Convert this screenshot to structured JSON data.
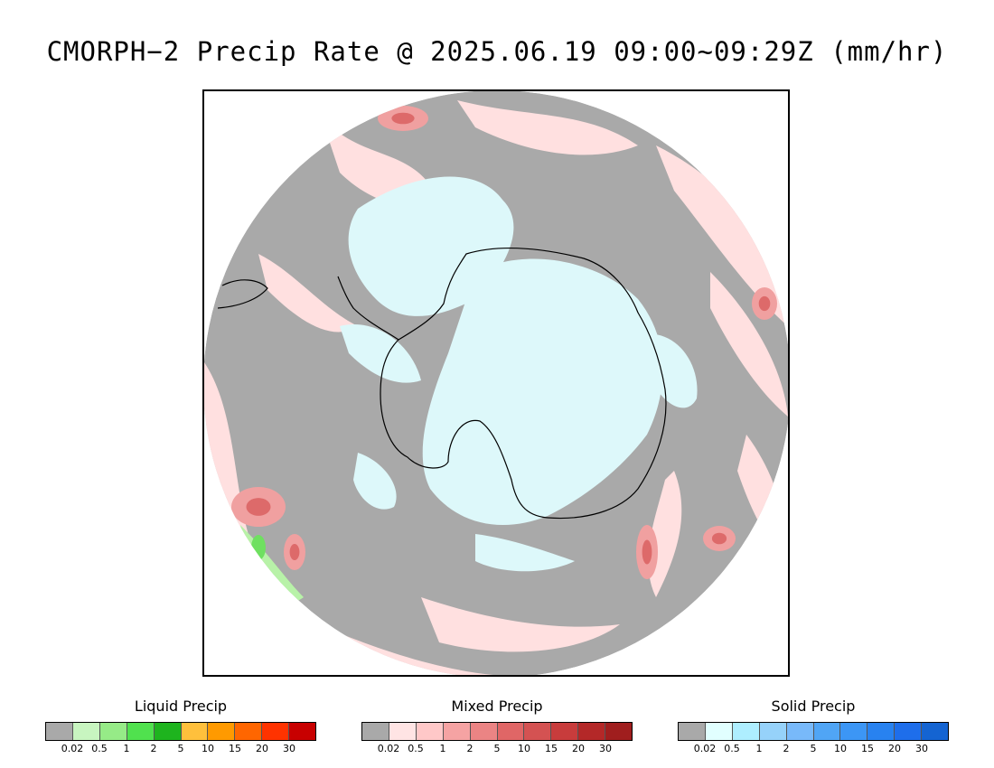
{
  "title": "CMORPH−2 Precip Rate @ 2025.06.19 09:00~09:29Z (mm/hr)",
  "legends": [
    {
      "id": "liquid",
      "title": "Liquid Precip",
      "colors": [
        "#a9a9a9",
        "#c8f5c0",
        "#96eb87",
        "#50e14e",
        "#1eb41e",
        "#ffc03c",
        "#ff9a00",
        "#ff6600",
        "#ff3300",
        "#c80000"
      ],
      "ticks": [
        "0.02",
        "0.5",
        "1",
        "2",
        "5",
        "10",
        "15",
        "20",
        "30"
      ]
    },
    {
      "id": "mixed",
      "title": "Mixed Precip",
      "colors": [
        "#a9a9a9",
        "#ffe4e4",
        "#ffc8c8",
        "#f5a3a3",
        "#eb8484",
        "#e06666",
        "#d45252",
        "#c83c3c",
        "#b42828",
        "#a01e1e"
      ],
      "ticks": [
        "0.02",
        "0.5",
        "1",
        "2",
        "5",
        "10",
        "15",
        "20",
        "30"
      ]
    },
    {
      "id": "solid",
      "title": "Solid Precip",
      "colors": [
        "#a9a9a9",
        "#e1ffff",
        "#aeeeff",
        "#96d2fa",
        "#78b9fa",
        "#50a5f5",
        "#3c96f5",
        "#2882f0",
        "#1e6eeb",
        "#1464d2"
      ],
      "ticks": [
        "0.02",
        "0.5",
        "1",
        "2",
        "5",
        "10",
        "15",
        "20",
        "30"
      ]
    }
  ],
  "map": {
    "background_color": "#a9a9a9",
    "mixed_light_color": "#ffe0e0",
    "mixed_mid_color": "#f0a0a0",
    "mixed_heavy_color": "#dd6a6a",
    "solid_light_color": "#ddf8fa",
    "liquid_light_color": "#b8f2a8",
    "liquid_mid_color": "#6fe060",
    "coast_color": "#000000"
  }
}
